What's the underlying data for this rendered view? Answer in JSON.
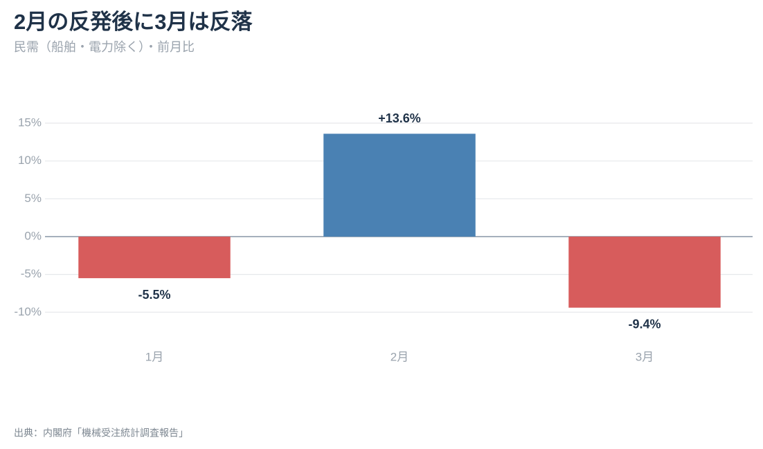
{
  "chart_data": {
    "type": "bar",
    "title": "2月の反発後に3月は反落",
    "subtitle": "民需（船舶・電力除く）・前月比",
    "source": "出典：内閣府「機械受注統計調査報告」",
    "categories": [
      "1月",
      "2月",
      "3月"
    ],
    "values": [
      -5.5,
      13.6,
      -9.4
    ],
    "value_labels": [
      "-5.5%",
      "+13.6%",
      "-9.4%"
    ],
    "colors": [
      "#d75c5c",
      "#4a81b3",
      "#d75c5c"
    ],
    "ylim": [
      -12.5,
      17.5
    ],
    "yticks": [
      {
        "value": -10,
        "label": "-10%"
      },
      {
        "value": -5,
        "label": "-5%"
      },
      {
        "value": 0,
        "label": "0%"
      },
      {
        "value": 5,
        "label": "5%"
      },
      {
        "value": 10,
        "label": "10%"
      },
      {
        "value": 15,
        "label": "15%"
      }
    ],
    "grid": true
  }
}
